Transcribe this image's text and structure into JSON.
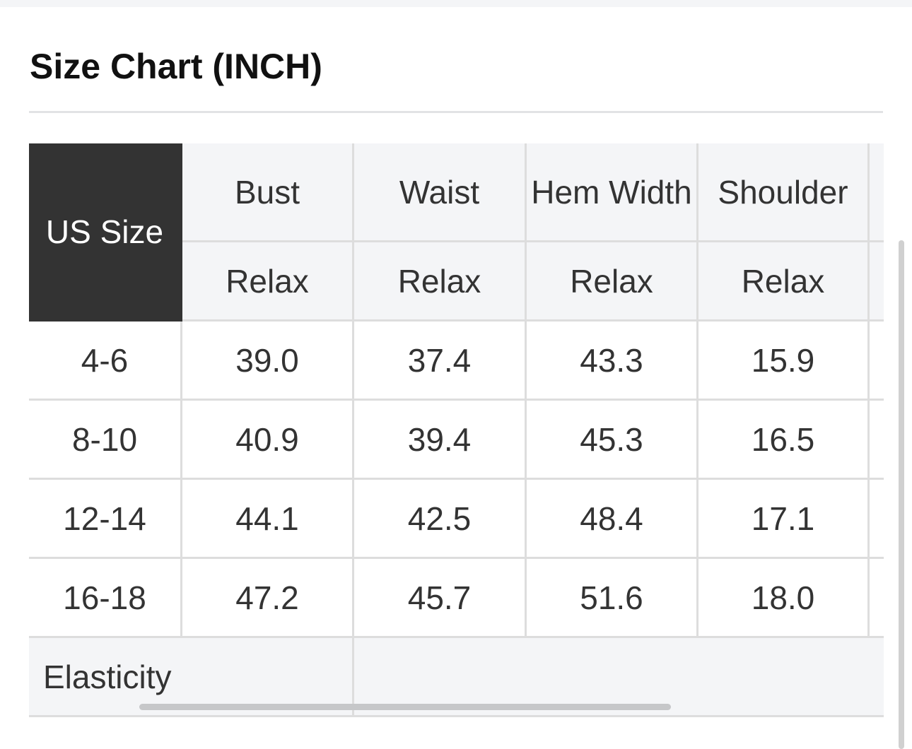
{
  "title": "Size Chart (INCH)",
  "table": {
    "corner_label": "US Size",
    "columns": [
      "Bust",
      "Waist",
      "Hem Width",
      "Shoulder"
    ],
    "subheader": "Relax",
    "rows": [
      {
        "size": "4-6",
        "values": [
          "39.0",
          "37.4",
          "43.3",
          "15.9"
        ]
      },
      {
        "size": "8-10",
        "values": [
          "40.9",
          "39.4",
          "45.3",
          "16.5"
        ]
      },
      {
        "size": "12-14",
        "values": [
          "44.1",
          "42.5",
          "48.4",
          "17.1"
        ]
      },
      {
        "size": "16-18",
        "values": [
          "47.2",
          "45.7",
          "51.6",
          "18.0"
        ]
      }
    ],
    "footer_label": "Elasticity"
  },
  "colors": {
    "header_bg": "#f4f5f7",
    "corner_bg": "#333333",
    "border": "#dddddd",
    "text": "#333333"
  }
}
